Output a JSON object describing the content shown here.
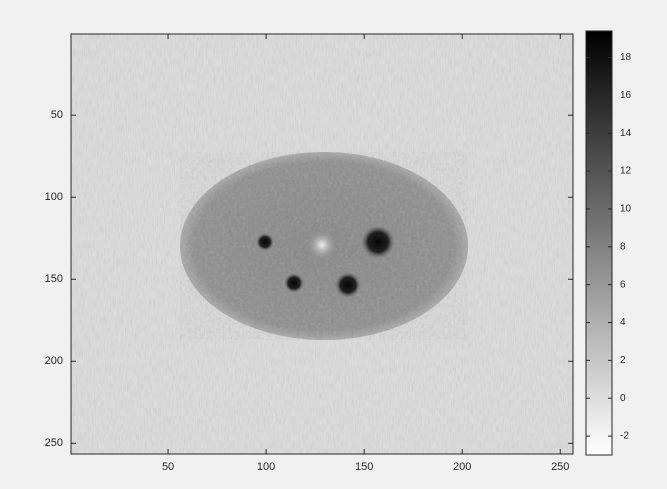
{
  "chart_data": {
    "type": "image",
    "colormap": "gray",
    "xlim": [
      0.5,
      256.5
    ],
    "ylim": [
      0.5,
      256.5
    ],
    "y_reversed": true,
    "xticks": [
      50,
      100,
      150,
      200,
      250
    ],
    "yticks": [
      50,
      100,
      150,
      200,
      250
    ],
    "colorbar": {
      "clim": [
        -3,
        19.4
      ],
      "ticks": [
        -2,
        0,
        2,
        4,
        6,
        8,
        10,
        12,
        14,
        16,
        18
      ]
    }
  }
}
